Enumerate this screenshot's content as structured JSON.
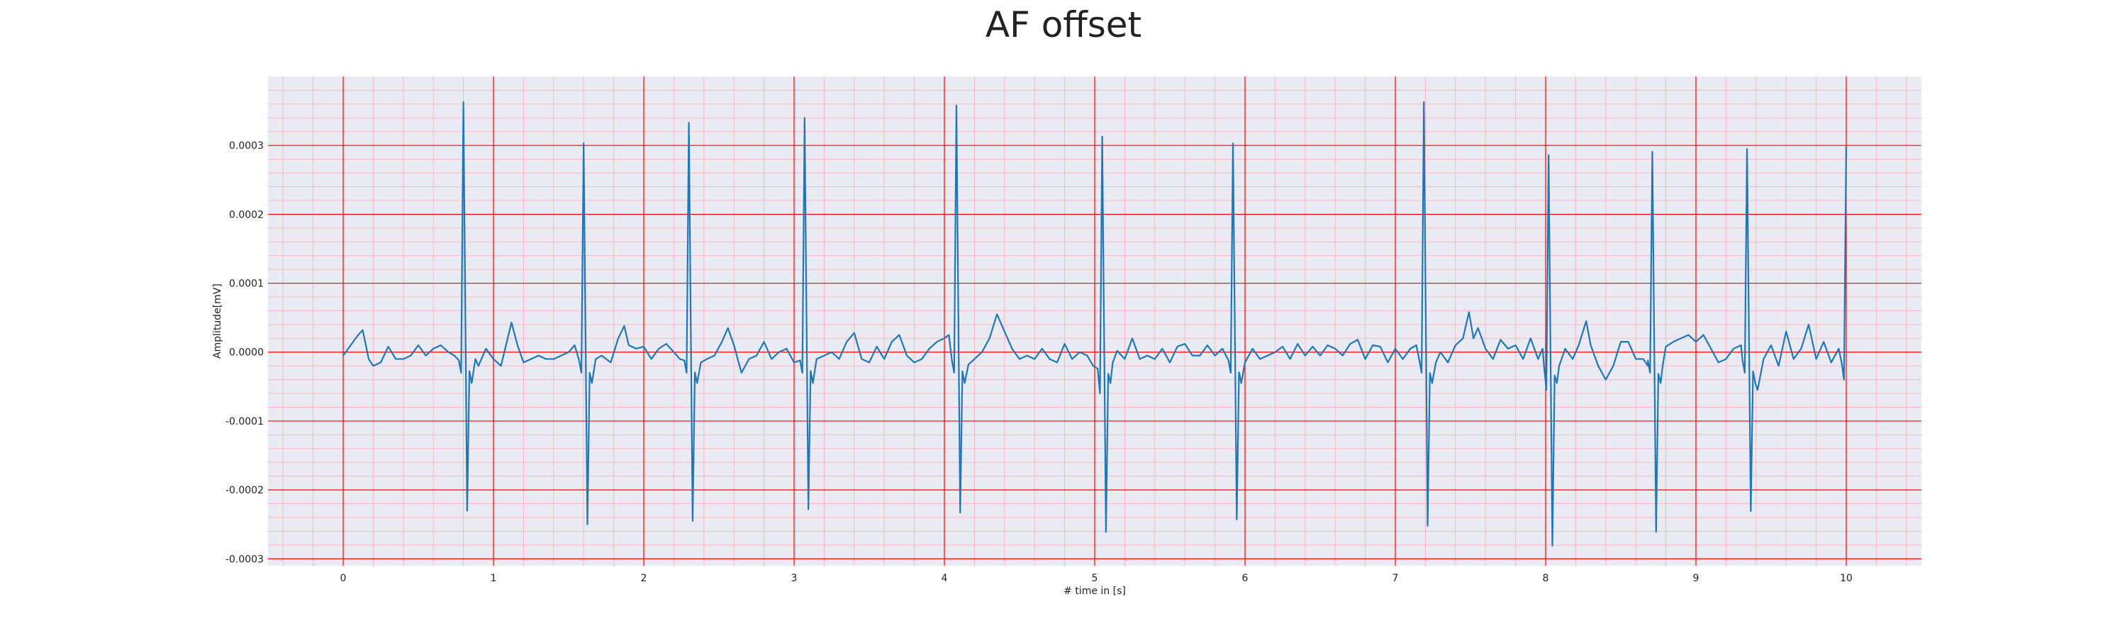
{
  "chart_data": {
    "type": "line",
    "title": "AF offset",
    "xlabel": "# time in [s]",
    "ylabel": "Amplitude[mV]",
    "xlim": [
      -0.5,
      10.5
    ],
    "ylim": [
      -0.00031,
      0.0004
    ],
    "x_ticks": [
      0,
      1,
      2,
      3,
      4,
      5,
      6,
      7,
      8,
      9,
      10
    ],
    "y_ticks": [
      -0.0003,
      -0.0002,
      -0.0001,
      0.0,
      0.0001,
      0.0002,
      0.0003
    ],
    "y_tick_labels": [
      "-0.0003",
      "-0.0002",
      "-0.0001",
      "0.0000",
      "0.0001",
      "0.0002",
      "0.0003"
    ],
    "grid": true,
    "minor_grid": true,
    "colors": {
      "background": "#eaeaf2",
      "major_grid": "#ff0000",
      "minor_grid": "#ffb6c1",
      "line": "#1f77b4"
    },
    "series": [
      {
        "name": "",
        "color": "#1f77b4",
        "beats": [
          {
            "t": 0.8,
            "q": -3e-05,
            "r": 0.000363,
            "s": -0.00023
          },
          {
            "t": 1.6,
            "q": -3e-05,
            "r": 0.000303,
            "s": -0.00025
          },
          {
            "t": 2.3,
            "q": -3e-05,
            "r": 0.000333,
            "s": -0.000245
          },
          {
            "t": 3.07,
            "q": -3e-05,
            "r": 0.00034,
            "s": -0.000228
          },
          {
            "t": 4.08,
            "q": -3e-05,
            "r": 0.000358,
            "s": -0.000233
          },
          {
            "t": 5.05,
            "q": -6e-05,
            "r": 0.000313,
            "s": -0.000261
          },
          {
            "t": 5.92,
            "q": -3e-05,
            "r": 0.000303,
            "s": -0.000243
          },
          {
            "t": 7.19,
            "q": -3e-05,
            "r": 0.000363,
            "s": -0.000252
          },
          {
            "t": 8.02,
            "q": -5.5e-05,
            "r": 0.000286,
            "s": -0.000281
          },
          {
            "t": 8.71,
            "q": -3e-05,
            "r": 0.000291,
            "s": -0.000261
          },
          {
            "t": 9.34,
            "q": -3e-05,
            "r": 0.000295,
            "s": -0.000231
          },
          {
            "t": 10.0,
            "q": -4e-05,
            "r": 0.000298,
            "s": null
          }
        ],
        "baseline": [
          [
            0.0,
            -5e-06
          ],
          [
            0.05,
            1e-05
          ],
          [
            0.1,
            2.5e-05
          ],
          [
            0.13,
            3.2e-05
          ],
          [
            0.17,
            -1e-05
          ],
          [
            0.2,
            -2e-05
          ],
          [
            0.25,
            -1.5e-05
          ],
          [
            0.3,
            8e-06
          ],
          [
            0.35,
            -1e-05
          ],
          [
            0.4,
            -1e-05
          ],
          [
            0.45,
            -5e-06
          ],
          [
            0.5,
            1e-05
          ],
          [
            0.55,
            -5e-06
          ],
          [
            0.6,
            5e-06
          ],
          [
            0.65,
            1e-05
          ],
          [
            0.7,
            0.0
          ],
          [
            0.74,
            -5e-06
          ],
          [
            0.88,
            -1e-05
          ],
          [
            0.9,
            -2e-05
          ],
          [
            0.95,
            5e-06
          ],
          [
            1.0,
            -1e-05
          ],
          [
            1.05,
            -2e-05
          ],
          [
            1.1,
            2.5e-05
          ],
          [
            1.12,
            4.3e-05
          ],
          [
            1.16,
            1e-05
          ],
          [
            1.2,
            -1.5e-05
          ],
          [
            1.25,
            -1e-05
          ],
          [
            1.3,
            -5e-06
          ],
          [
            1.35,
            -1e-05
          ],
          [
            1.4,
            -1e-05
          ],
          [
            1.45,
            -5e-06
          ],
          [
            1.5,
            0.0
          ],
          [
            1.54,
            1e-05
          ],
          [
            1.68,
            -1e-05
          ],
          [
            1.72,
            -5e-06
          ],
          [
            1.78,
            -1.5e-05
          ],
          [
            1.83,
            2e-05
          ],
          [
            1.87,
            3.8e-05
          ],
          [
            1.9,
            1e-05
          ],
          [
            1.95,
            5e-06
          ],
          [
            2.0,
            8e-06
          ],
          [
            2.05,
            -1e-05
          ],
          [
            2.1,
            5e-06
          ],
          [
            2.15,
            1.2e-05
          ],
          [
            2.2,
            0.0
          ],
          [
            2.24,
            -1e-05
          ],
          [
            2.38,
            -1.5e-05
          ],
          [
            2.42,
            -1e-05
          ],
          [
            2.47,
            -5e-06
          ],
          [
            2.52,
            1.5e-05
          ],
          [
            2.56,
            3.5e-05
          ],
          [
            2.6,
            1e-05
          ],
          [
            2.65,
            -3e-05
          ],
          [
            2.7,
            -1e-05
          ],
          [
            2.75,
            -5e-06
          ],
          [
            2.8,
            1.5e-05
          ],
          [
            2.85,
            -1e-05
          ],
          [
            2.9,
            0.0
          ],
          [
            2.95,
            5e-06
          ],
          [
            3.0,
            -1.5e-05
          ],
          [
            3.15,
            -1e-05
          ],
          [
            3.2,
            -5e-06
          ],
          [
            3.25,
            0.0
          ],
          [
            3.3,
            -1e-05
          ],
          [
            3.35,
            1.5e-05
          ],
          [
            3.4,
            2.8e-05
          ],
          [
            3.45,
            -1e-05
          ],
          [
            3.5,
            -1.5e-05
          ],
          [
            3.55,
            8e-06
          ],
          [
            3.6,
            -1e-05
          ],
          [
            3.65,
            1.5e-05
          ],
          [
            3.7,
            2.5e-05
          ],
          [
            3.75,
            -5e-06
          ],
          [
            3.8,
            -1.5e-05
          ],
          [
            3.85,
            -1e-05
          ],
          [
            3.9,
            5e-06
          ],
          [
            3.95,
            1.5e-05
          ],
          [
            4.0,
            2e-05
          ],
          [
            4.03,
            2.5e-05
          ],
          [
            4.16,
            -1.8e-05
          ],
          [
            4.2,
            -1e-05
          ],
          [
            4.25,
            0.0
          ],
          [
            4.3,
            2e-05
          ],
          [
            4.35,
            5.5e-05
          ],
          [
            4.4,
            3e-05
          ],
          [
            4.45,
            5e-06
          ],
          [
            4.5,
            -1e-05
          ],
          [
            4.55,
            -5e-06
          ],
          [
            4.6,
            -1e-05
          ],
          [
            4.65,
            5e-06
          ],
          [
            4.7,
            -1e-05
          ],
          [
            4.75,
            -1.5e-05
          ],
          [
            4.8,
            1.2e-05
          ],
          [
            4.85,
            -1e-05
          ],
          [
            4.9,
            0.0
          ],
          [
            4.95,
            -5e-06
          ],
          [
            4.99,
            -2e-05
          ],
          [
            5.12,
            -1.5e-05
          ],
          [
            5.15,
            2e-06
          ],
          [
            5.2,
            -1e-05
          ],
          [
            5.25,
            2e-05
          ],
          [
            5.3,
            -1e-05
          ],
          [
            5.35,
            -5e-06
          ],
          [
            5.4,
            -1e-05
          ],
          [
            5.45,
            5e-06
          ],
          [
            5.5,
            -1.5e-05
          ],
          [
            5.55,
            8e-06
          ],
          [
            5.6,
            1.2e-05
          ],
          [
            5.65,
            -5e-06
          ],
          [
            5.7,
            -5e-06
          ],
          [
            5.75,
            1e-05
          ],
          [
            5.8,
            -5e-06
          ],
          [
            5.85,
            5e-06
          ],
          [
            6.0,
            -1.5e-05
          ],
          [
            6.05,
            5e-06
          ],
          [
            6.1,
            -1e-05
          ],
          [
            6.15,
            -5e-06
          ],
          [
            6.2,
            0.0
          ],
          [
            6.25,
            8e-06
          ],
          [
            6.3,
            -1e-05
          ],
          [
            6.35,
            1.2e-05
          ],
          [
            6.4,
            -5e-06
          ],
          [
            6.45,
            8e-06
          ],
          [
            6.5,
            -5e-06
          ],
          [
            6.55,
            1e-05
          ],
          [
            6.6,
            5e-06
          ],
          [
            6.65,
            -5e-06
          ],
          [
            6.7,
            1.2e-05
          ],
          [
            6.75,
            1.8e-05
          ],
          [
            6.8,
            -1e-05
          ],
          [
            6.85,
            1e-05
          ],
          [
            6.9,
            8e-06
          ],
          [
            6.95,
            -1.5e-05
          ],
          [
            7.0,
            5e-06
          ],
          [
            7.05,
            -1e-05
          ],
          [
            7.1,
            5e-06
          ],
          [
            7.14,
            1e-05
          ],
          [
            7.27,
            -1.5e-05
          ],
          [
            7.3,
            0.0
          ],
          [
            7.35,
            -1.5e-05
          ],
          [
            7.4,
            1e-05
          ],
          [
            7.45,
            2e-05
          ],
          [
            7.49,
            5.8e-05
          ],
          [
            7.52,
            2e-05
          ],
          [
            7.55,
            3.5e-05
          ],
          [
            7.6,
            5e-06
          ],
          [
            7.65,
            -1e-05
          ],
          [
            7.7,
            1.8e-05
          ],
          [
            7.75,
            5e-06
          ],
          [
            7.8,
            1e-05
          ],
          [
            7.85,
            -1e-05
          ],
          [
            7.9,
            2e-05
          ],
          [
            7.95,
            -1e-05
          ],
          [
            7.98,
            5e-06
          ],
          [
            8.09,
            -2e-05
          ],
          [
            8.13,
            5e-06
          ],
          [
            8.18,
            -1e-05
          ],
          [
            8.22,
            1e-05
          ],
          [
            8.27,
            4.5e-05
          ],
          [
            8.3,
            1e-05
          ],
          [
            8.35,
            -2e-05
          ],
          [
            8.4,
            -4e-05
          ],
          [
            8.45,
            -2e-05
          ],
          [
            8.5,
            1.5e-05
          ],
          [
            8.55,
            1.5e-05
          ],
          [
            8.6,
            -1e-05
          ],
          [
            8.65,
            -1e-05
          ],
          [
            8.68,
            -2e-05
          ],
          [
            8.78,
            -1.8e-05
          ],
          [
            8.8,
            8e-06
          ],
          [
            8.85,
            1.5e-05
          ],
          [
            8.9,
            2e-05
          ],
          [
            8.95,
            2.5e-05
          ],
          [
            9.0,
            1.5e-05
          ],
          [
            9.05,
            2.5e-05
          ],
          [
            9.1,
            5e-06
          ],
          [
            9.15,
            -1.5e-05
          ],
          [
            9.2,
            -1e-05
          ],
          [
            9.25,
            5e-06
          ],
          [
            9.3,
            1e-05
          ],
          [
            9.41,
            -5.5e-05
          ],
          [
            9.45,
            -1e-05
          ],
          [
            9.5,
            1e-05
          ],
          [
            9.55,
            -2e-05
          ],
          [
            9.6,
            3e-05
          ],
          [
            9.65,
            -1e-05
          ],
          [
            9.7,
            5e-06
          ],
          [
            9.75,
            4e-05
          ],
          [
            9.8,
            -1e-05
          ],
          [
            9.85,
            1.5e-05
          ],
          [
            9.9,
            -1.5e-05
          ],
          [
            9.95,
            5e-06
          ]
        ]
      }
    ]
  }
}
